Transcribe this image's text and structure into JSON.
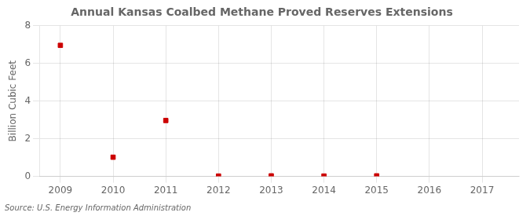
{
  "chart_data": {
    "type": "scatter",
    "title": "Annual Kansas Coalbed Methane Proved Reserves Extensions",
    "ylabel": "Billion Cubic Feet",
    "annotation": "Source: U.S. Energy Information Administration",
    "x": [
      2009,
      2010,
      2011,
      2012,
      2013,
      2014,
      2015
    ],
    "values": [
      6.96,
      1.02,
      2.97,
      0.02,
      0.03,
      0.02,
      0.03
    ],
    "color": "#cc0000",
    "marker": "square",
    "xlim": [
      2008.6,
      2017.7
    ],
    "xticks": [
      2009,
      2010,
      2011,
      2012,
      2013,
      2014,
      2015,
      2016,
      2017
    ],
    "ylim": [
      0,
      8
    ],
    "yticks": [
      0,
      2,
      4,
      6,
      8
    ],
    "grid": true
  }
}
